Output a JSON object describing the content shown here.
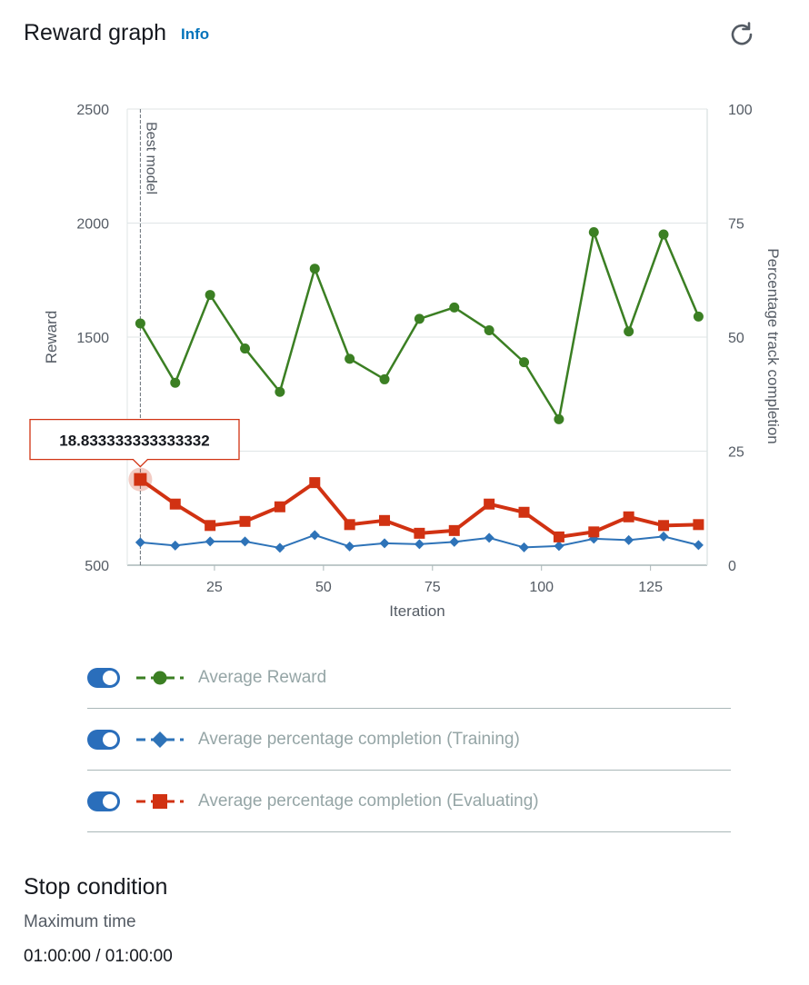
{
  "header": {
    "title": "Reward graph",
    "info_label": "Info"
  },
  "chart_data": {
    "type": "line",
    "x_label": "Iteration",
    "y_label_left": "Reward",
    "y_label_right": "Percentage track completion",
    "x_range": [
      5,
      138
    ],
    "x_ticks": [
      25,
      50,
      75,
      100,
      125
    ],
    "y_left_range": [
      500,
      2500
    ],
    "y_left_ticks": [
      500,
      1000,
      1500,
      2000,
      2500
    ],
    "y_right_range": [
      0,
      100
    ],
    "y_right_ticks": [
      0,
      25,
      50,
      75,
      100
    ],
    "grid": true,
    "marker_line": {
      "x": 8,
      "label": "Best model"
    },
    "tooltip": {
      "series": "Average percentage completion (Evaluating)",
      "x": 8,
      "value": "18.833333333333332"
    },
    "series": [
      {
        "name": "Average Reward",
        "axis": "left",
        "color": "#3b7f23",
        "marker": "circle",
        "x": [
          8,
          16,
          24,
          32,
          40,
          48,
          56,
          64,
          72,
          80,
          88,
          96,
          104,
          112,
          120,
          128,
          136
        ],
        "values": [
          1560,
          1300,
          1685,
          1450,
          1260,
          1800,
          1405,
          1315,
          1580,
          1630,
          1530,
          1390,
          1140,
          1960,
          1525,
          1950,
          1590
        ]
      },
      {
        "name": "Average percentage completion (Training)",
        "axis": "right",
        "color": "#2e73b8",
        "marker": "diamond",
        "x": [
          8,
          16,
          24,
          32,
          40,
          48,
          56,
          64,
          72,
          80,
          88,
          96,
          104,
          112,
          120,
          128,
          136
        ],
        "values": [
          5.0,
          4.3,
          5.2,
          5.2,
          3.8,
          6.6,
          4.1,
          4.8,
          4.6,
          5.1,
          6.0,
          3.9,
          4.2,
          5.8,
          5.5,
          6.3,
          4.4
        ]
      },
      {
        "name": "Average percentage completion (Evaluating)",
        "axis": "right",
        "color": "#d13212",
        "marker": "square",
        "x": [
          8,
          16,
          24,
          32,
          40,
          48,
          56,
          64,
          72,
          80,
          88,
          96,
          104,
          112,
          120,
          128,
          136
        ],
        "values": [
          18.8,
          13.4,
          8.7,
          9.6,
          12.8,
          18.1,
          8.9,
          9.8,
          7.0,
          7.6,
          13.4,
          11.6,
          6.2,
          7.3,
          10.6,
          8.7,
          8.9
        ]
      }
    ]
  },
  "legend": [
    {
      "label": "Average Reward",
      "color": "#3b7f23",
      "marker": "circle",
      "enabled": true
    },
    {
      "label": "Average percentage completion (Training)",
      "color": "#2e73b8",
      "marker": "diamond",
      "enabled": true
    },
    {
      "label": "Average percentage completion (Evaluating)",
      "color": "#d13212",
      "marker": "square",
      "enabled": true
    }
  ],
  "stop_condition": {
    "title": "Stop condition",
    "label": "Maximum time",
    "value": "01:00:00 / 01:00:00"
  }
}
